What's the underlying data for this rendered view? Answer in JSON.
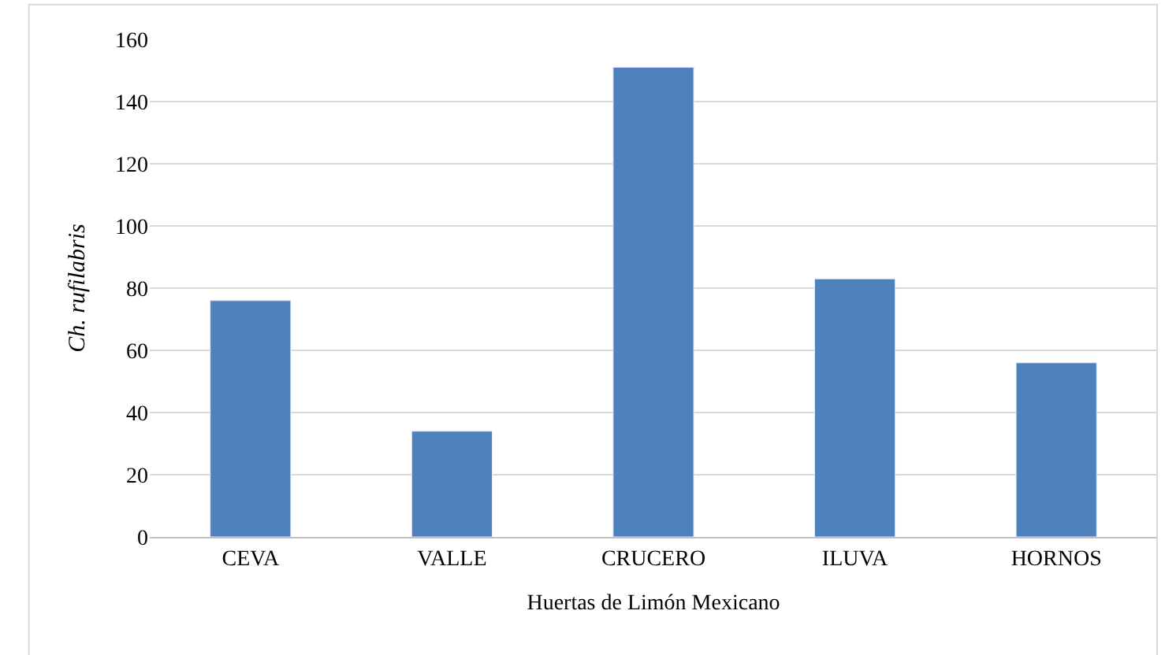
{
  "chart_data": {
    "type": "bar",
    "xlabel": "Huertas de Limón Mexicano",
    "ylabel": "Ch. rufilabris",
    "categories": [
      "CEVA",
      "VALLE",
      "CRUCERO",
      "ILUVA",
      "HORNOS"
    ],
    "values": [
      76,
      34,
      151,
      83,
      56
    ],
    "color": "#4f81bd",
    "ylim": [
      0,
      160
    ],
    "yticks": [
      0,
      20,
      40,
      60,
      80,
      100,
      120,
      140,
      160
    ],
    "grid": "y"
  }
}
